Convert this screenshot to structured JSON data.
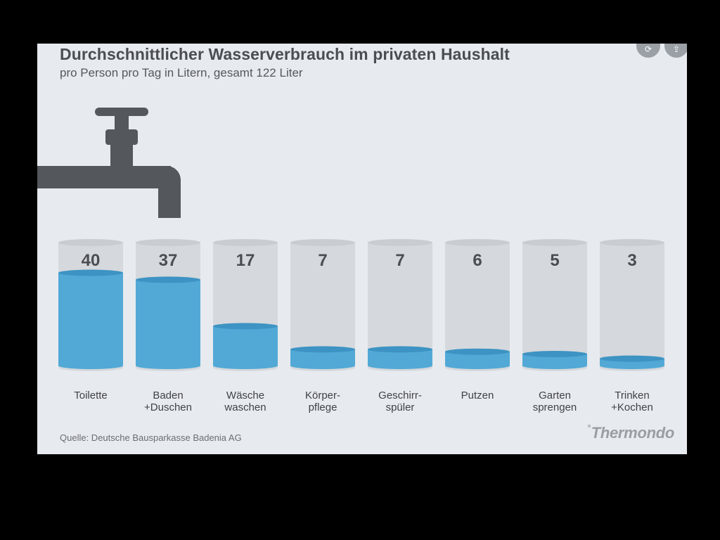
{
  "title": "Durchschnittlicher Wasserverbrauch im privaten Haushalt",
  "subtitle": "pro Person pro Tag in Litern, gesamt 122 Liter",
  "source": "Quelle: Deutsche Bausparkasse Badenia AG",
  "brand": "Thermondo",
  "controls": [
    {
      "name": "share-icon",
      "glyph": "⟳"
    },
    {
      "name": "export-icon",
      "glyph": "⇪"
    }
  ],
  "colors": {
    "water": "#52a9d6",
    "water_top": "#3d93c3",
    "glass": "#d5d8dc",
    "glass_rim": "#c9ccd1",
    "faucet": "#54575b"
  },
  "chart_data": {
    "type": "bar",
    "title": "Durchschnittlicher Wasserverbrauch im privaten Haushalt",
    "subtitle": "pro Person pro Tag in Litern, gesamt 122 Liter",
    "ylabel": "",
    "xlabel": "",
    "categories": [
      [
        "Toilette"
      ],
      [
        "Baden",
        "+Duschen"
      ],
      [
        "Wäsche",
        "waschen"
      ],
      [
        "Körper-",
        "pflege"
      ],
      [
        "Geschirr-",
        "spüler"
      ],
      [
        "Putzen"
      ],
      [
        "Garten",
        "sprengen"
      ],
      [
        "Trinken",
        "+Kochen"
      ]
    ],
    "values": [
      40,
      37,
      17,
      7,
      7,
      6,
      5,
      3
    ],
    "ylim": [
      0,
      45
    ]
  }
}
